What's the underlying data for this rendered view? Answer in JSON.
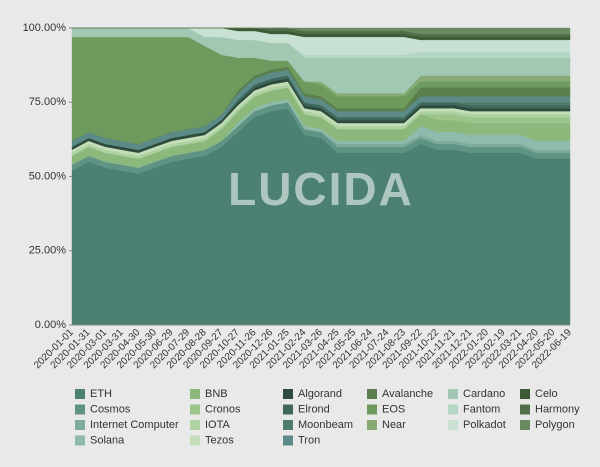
{
  "chart_data": {
    "type": "stacked-area",
    "watermark": "LUCIDA",
    "x": [
      "2020-01-01",
      "2020-01-31",
      "2020-03-01",
      "2020-03-31",
      "2020-04-30",
      "2020-05-30",
      "2020-06-29",
      "2020-07-29",
      "2020-08-28",
      "2020-09-27",
      "2020-10-27",
      "2020-11-26",
      "2020-12-26",
      "2021-01-25",
      "2021-02-24",
      "2021-03-26",
      "2021-04-25",
      "2021-05-25",
      "2021-06-24",
      "2021-07-24",
      "2021-08-23",
      "2021-09-22",
      "2021-10-22",
      "2021-11-21",
      "2021-12-21",
      "2022-01-20",
      "2022-02-19",
      "2022-03-21",
      "2022-04-20",
      "2022-05-20",
      "2022-06-19"
    ],
    "ylim": [
      0,
      100
    ],
    "yticks": [
      {
        "value": 0,
        "label": "0.00%"
      },
      {
        "value": 25,
        "label": "25.00%"
      },
      {
        "value": 50,
        "label": "50.00%"
      },
      {
        "value": 75,
        "label": "75.00%"
      },
      {
        "value": 100,
        "label": "100.00%"
      }
    ],
    "series": [
      {
        "name": "ETH",
        "color": "#4b8073",
        "values": [
          52,
          55,
          53,
          52,
          51,
          53,
          55,
          56,
          57,
          60,
          65,
          70,
          72,
          73,
          64,
          63,
          58,
          58,
          58,
          58,
          58,
          61,
          59,
          59,
          58,
          58,
          58,
          58,
          56,
          56,
          56
        ]
      },
      {
        "name": "Cosmos",
        "color": "#5f9485",
        "values": [
          2,
          2,
          2,
          2,
          2,
          2,
          2,
          2,
          2,
          2,
          2,
          2,
          2,
          2,
          2,
          2,
          2,
          2,
          2,
          2,
          2,
          2,
          2,
          2,
          2,
          2,
          2,
          2,
          2,
          2,
          2
        ]
      },
      {
        "name": "Internet Computer",
        "color": "#7dab9d",
        "values": [
          0,
          0,
          0,
          0,
          0,
          0,
          0,
          0,
          0,
          0,
          0,
          0,
          0,
          0,
          0,
          0,
          1,
          1,
          1,
          1,
          1,
          1,
          1,
          1,
          1,
          1,
          1,
          1,
          1,
          1,
          1
        ]
      },
      {
        "name": "Solana",
        "color": "#8fbaae",
        "values": [
          0,
          0,
          0,
          0,
          0,
          0,
          0,
          0,
          0,
          0,
          1,
          1,
          1,
          1,
          1,
          1,
          1,
          1,
          1,
          1,
          1,
          3,
          3,
          3,
          3,
          3,
          3,
          3,
          3,
          3,
          3
        ]
      },
      {
        "name": "BNB",
        "color": "#8db87c",
        "values": [
          3,
          3,
          3,
          3,
          3,
          3,
          3,
          3,
          3,
          4,
          4,
          4,
          4,
          4,
          4,
          4,
          4,
          4,
          4,
          4,
          4,
          4,
          4,
          4,
          4,
          4,
          4,
          4,
          6,
          6,
          6
        ]
      },
      {
        "name": "Cronos",
        "color": "#9cc58c",
        "values": [
          0,
          0,
          0,
          0,
          0,
          0,
          0,
          0,
          0,
          0,
          0,
          0,
          0,
          0,
          0,
          0,
          0,
          0,
          0,
          0,
          0,
          0,
          2,
          2,
          2,
          2,
          2,
          2,
          2,
          2,
          2
        ]
      },
      {
        "name": "IOTA",
        "color": "#afd2a2",
        "values": [
          1,
          1,
          1,
          1,
          1,
          1,
          1,
          1,
          1,
          1,
          1,
          1,
          1,
          1,
          1,
          1,
          1,
          1,
          1,
          1,
          1,
          1,
          1,
          1,
          1,
          1,
          1,
          1,
          1,
          1,
          1
        ]
      },
      {
        "name": "Tezos",
        "color": "#c3deb8",
        "values": [
          1,
          1,
          1,
          1,
          1,
          1,
          1,
          1,
          1,
          1,
          1,
          1,
          1,
          1,
          1,
          1,
          1,
          1,
          1,
          1,
          1,
          1,
          1,
          1,
          1,
          1,
          1,
          1,
          1,
          1,
          1
        ]
      },
      {
        "name": "Algorand",
        "color": "#2d4a3d",
        "values": [
          1,
          1,
          1,
          1,
          1,
          1,
          1,
          1,
          1,
          1,
          1,
          1,
          1,
          1,
          1,
          1,
          1,
          1,
          1,
          1,
          1,
          1,
          1,
          1,
          1,
          1,
          1,
          1,
          1,
          1,
          1
        ]
      },
      {
        "name": "Elrond",
        "color": "#3d685b",
        "values": [
          0,
          0,
          0,
          0,
          0,
          0,
          0,
          0,
          0,
          0,
          1,
          1,
          1,
          1,
          1,
          1,
          1,
          1,
          1,
          1,
          1,
          1,
          1,
          1,
          1,
          1,
          1,
          1,
          1,
          1,
          1
        ]
      },
      {
        "name": "Moonbeam",
        "color": "#4e7b6d",
        "values": [
          0,
          0,
          0,
          0,
          0,
          0,
          0,
          0,
          0,
          0,
          0,
          0,
          0,
          0,
          0,
          0,
          0,
          0,
          0,
          0,
          0,
          0,
          0,
          0,
          1,
          1,
          1,
          1,
          1,
          1,
          1
        ]
      },
      {
        "name": "Tron",
        "color": "#5b8a87",
        "values": [
          2,
          2,
          2,
          2,
          2,
          2,
          2,
          2,
          2,
          2,
          2,
          2,
          2,
          2,
          2,
          2,
          2,
          2,
          2,
          2,
          2,
          2,
          2,
          2,
          2,
          2,
          2,
          2,
          2,
          2,
          2
        ]
      },
      {
        "name": "Avalanche",
        "color": "#5b7e4d",
        "values": [
          0,
          0,
          0,
          0,
          0,
          0,
          0,
          0,
          0,
          0,
          1,
          1,
          1,
          1,
          1,
          1,
          1,
          1,
          1,
          1,
          1,
          3,
          3,
          3,
          3,
          3,
          3,
          3,
          3,
          3,
          3
        ]
      },
      {
        "name": "EOS",
        "color": "#6f9a5d",
        "values": [
          35,
          32,
          34,
          35,
          36,
          34,
          32,
          31,
          27,
          20,
          11,
          6,
          3,
          2,
          4,
          4,
          4,
          4,
          4,
          4,
          4,
          2,
          2,
          2,
          2,
          2,
          2,
          2,
          2,
          2,
          2
        ]
      },
      {
        "name": "Near",
        "color": "#87aa74",
        "values": [
          0,
          0,
          0,
          0,
          0,
          0,
          0,
          0,
          0,
          0,
          0,
          0,
          0,
          0,
          0,
          1,
          1,
          1,
          1,
          1,
          1,
          2,
          2,
          2,
          2,
          2,
          2,
          2,
          2,
          2,
          2
        ]
      },
      {
        "name": "Cardano",
        "color": "#a2c8b4",
        "values": [
          3,
          3,
          3,
          3,
          3,
          3,
          3,
          3,
          3,
          6,
          6,
          6,
          6,
          6,
          8,
          8,
          12,
          12,
          12,
          12,
          12,
          6,
          6,
          6,
          6,
          6,
          6,
          6,
          6,
          6,
          6
        ]
      },
      {
        "name": "Fantom",
        "color": "#b6d6c5",
        "values": [
          0,
          0,
          0,
          0,
          0,
          0,
          0,
          0,
          0,
          0,
          0,
          0,
          0,
          0,
          1,
          1,
          1,
          1,
          1,
          1,
          1,
          2,
          2,
          2,
          2,
          2,
          2,
          2,
          2,
          2,
          2
        ]
      },
      {
        "name": "Polkadot",
        "color": "#c8e1d3",
        "values": [
          0,
          0,
          0,
          0,
          0,
          0,
          0,
          0,
          3,
          3,
          3,
          3,
          3,
          3,
          6,
          6,
          6,
          6,
          6,
          6,
          6,
          4,
          4,
          4,
          4,
          4,
          4,
          4,
          4,
          4,
          4
        ]
      },
      {
        "name": "Celo",
        "color": "#3c5a35",
        "values": [
          0,
          0,
          0,
          0,
          0,
          0,
          0,
          0,
          0,
          0,
          1,
          1,
          1,
          1,
          1,
          1,
          1,
          1,
          1,
          1,
          1,
          1,
          1,
          1,
          1,
          1,
          1,
          1,
          1,
          1,
          1
        ]
      },
      {
        "name": "Harmony",
        "color": "#4f6f48",
        "values": [
          0,
          0,
          0,
          0,
          0,
          0,
          0,
          0,
          0,
          0,
          0,
          0,
          1,
          1,
          1,
          1,
          1,
          1,
          1,
          1,
          1,
          1,
          1,
          1,
          1,
          1,
          1,
          1,
          1,
          1,
          1
        ]
      },
      {
        "name": "Polygon",
        "color": "#6b8a61",
        "values": [
          0,
          0,
          0,
          0,
          0,
          0,
          0,
          0,
          0,
          0,
          0,
          0,
          0,
          0,
          1,
          1,
          1,
          1,
          1,
          1,
          1,
          2,
          2,
          2,
          2,
          2,
          2,
          2,
          2,
          2,
          2
        ]
      }
    ]
  }
}
